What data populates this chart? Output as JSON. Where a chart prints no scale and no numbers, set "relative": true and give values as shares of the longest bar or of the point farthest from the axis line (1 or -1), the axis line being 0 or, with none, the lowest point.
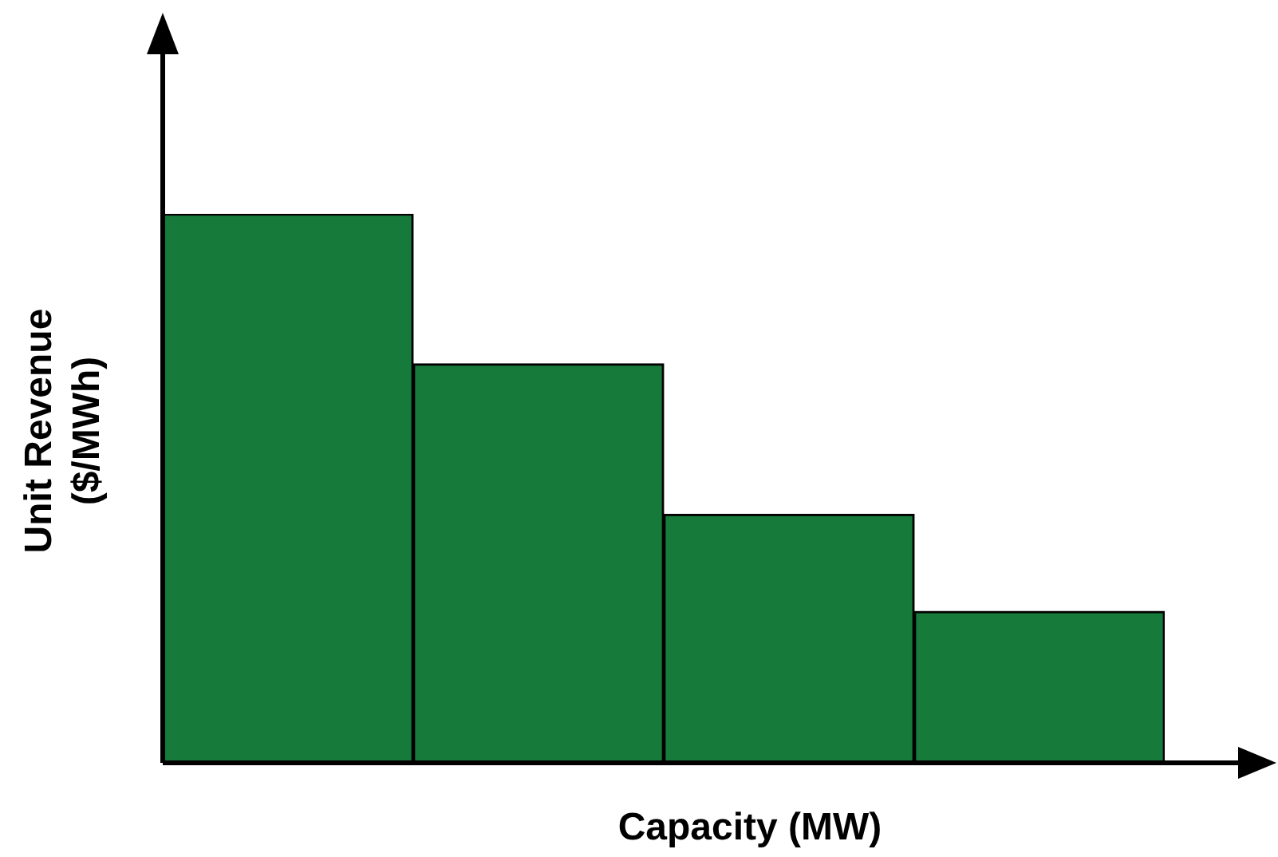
{
  "chart_data": {
    "type": "bar",
    "relative": true,
    "xlabel": "Capacity (MW)",
    "ylabel": "Unit Revenue ($/MWh)",
    "categories": [
      null,
      null,
      null,
      null
    ],
    "values": [
      1,
      0.727,
      0.453,
      0.276
    ],
    "color": "#167a3a"
  }
}
